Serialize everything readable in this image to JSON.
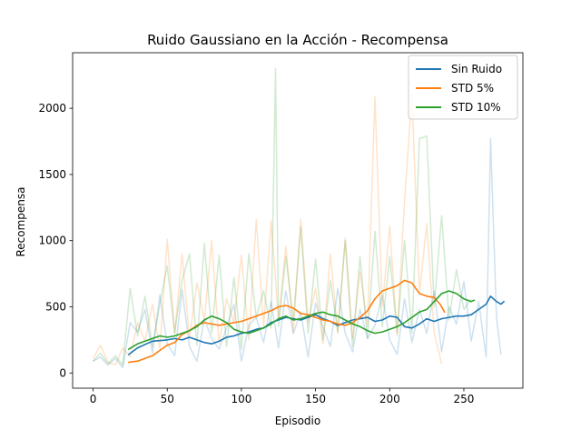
{
  "chart_data": {
    "type": "line",
    "title": "Ruido Gaussiano en la Acción - Recompensa",
    "xlabel": "Episodio",
    "ylabel": "Recompensa",
    "xlim": [
      -13.8,
      289.8
    ],
    "ylim": [
      -115,
      2420
    ],
    "xticks": [
      0,
      50,
      100,
      150,
      200,
      250
    ],
    "yticks": [
      0,
      500,
      1000,
      1500,
      2000
    ],
    "legend_position": "top-right",
    "series": [
      {
        "name": "Sin Ruido",
        "color": "#1f77b4",
        "smoothed_points": [
          [
            24,
            140
          ],
          [
            30,
            190
          ],
          [
            40,
            240
          ],
          [
            50,
            250
          ],
          [
            55,
            260
          ],
          [
            60,
            250
          ],
          [
            65,
            270
          ],
          [
            70,
            250
          ],
          [
            75,
            230
          ],
          [
            80,
            220
          ],
          [
            85,
            240
          ],
          [
            90,
            270
          ],
          [
            95,
            280
          ],
          [
            100,
            300
          ],
          [
            105,
            310
          ],
          [
            110,
            330
          ],
          [
            115,
            340
          ],
          [
            120,
            380
          ],
          [
            125,
            400
          ],
          [
            130,
            420
          ],
          [
            135,
            410
          ],
          [
            140,
            400
          ],
          [
            145,
            420
          ],
          [
            150,
            440
          ],
          [
            155,
            410
          ],
          [
            160,
            390
          ],
          [
            165,
            360
          ],
          [
            170,
            380
          ],
          [
            175,
            400
          ],
          [
            180,
            410
          ],
          [
            185,
            420
          ],
          [
            190,
            390
          ],
          [
            195,
            400
          ],
          [
            200,
            430
          ],
          [
            205,
            420
          ],
          [
            210,
            350
          ],
          [
            215,
            340
          ],
          [
            220,
            370
          ],
          [
            225,
            410
          ],
          [
            230,
            390
          ],
          [
            235,
            410
          ],
          [
            240,
            420
          ],
          [
            245,
            430
          ],
          [
            250,
            430
          ],
          [
            255,
            440
          ],
          [
            260,
            480
          ],
          [
            265,
            520
          ],
          [
            268,
            580
          ],
          [
            272,
            540
          ],
          [
            275,
            520
          ],
          [
            277,
            540
          ]
        ],
        "raw_peaks": [
          [
            0,
            90
          ],
          [
            5,
            120
          ],
          [
            10,
            60
          ],
          [
            15,
            110
          ],
          [
            20,
            40
          ],
          [
            25,
            380
          ],
          [
            30,
            310
          ],
          [
            35,
            480
          ],
          [
            40,
            150
          ],
          [
            45,
            590
          ],
          [
            50,
            220
          ],
          [
            55,
            130
          ],
          [
            60,
            630
          ],
          [
            65,
            200
          ],
          [
            70,
            90
          ],
          [
            75,
            410
          ],
          [
            80,
            260
          ],
          [
            85,
            180
          ],
          [
            90,
            340
          ],
          [
            95,
            520
          ],
          [
            100,
            90
          ],
          [
            105,
            360
          ],
          [
            110,
            420
          ],
          [
            115,
            230
          ],
          [
            120,
            540
          ],
          [
            125,
            190
          ],
          [
            130,
            620
          ],
          [
            135,
            300
          ],
          [
            140,
            460
          ],
          [
            145,
            120
          ],
          [
            150,
            530
          ],
          [
            155,
            350
          ],
          [
            160,
            200
          ],
          [
            165,
            640
          ],
          [
            170,
            300
          ],
          [
            175,
            160
          ],
          [
            180,
            480
          ],
          [
            185,
            260
          ],
          [
            190,
            360
          ],
          [
            195,
            590
          ],
          [
            200,
            250
          ],
          [
            205,
            140
          ],
          [
            210,
            560
          ],
          [
            215,
            230
          ],
          [
            220,
            480
          ],
          [
            225,
            300
          ],
          [
            230,
            620
          ],
          [
            235,
            160
          ],
          [
            240,
            500
          ],
          [
            245,
            370
          ],
          [
            250,
            690
          ],
          [
            255,
            240
          ],
          [
            260,
            540
          ],
          [
            265,
            120
          ],
          [
            268,
            1770
          ],
          [
            272,
            420
          ],
          [
            275,
            140
          ]
        ]
      },
      {
        "name": "STD 5%",
        "color": "#ff7f0e",
        "smoothed_points": [
          [
            24,
            80
          ],
          [
            30,
            90
          ],
          [
            40,
            130
          ],
          [
            45,
            170
          ],
          [
            50,
            210
          ],
          [
            55,
            230
          ],
          [
            60,
            290
          ],
          [
            65,
            320
          ],
          [
            70,
            360
          ],
          [
            75,
            380
          ],
          [
            80,
            370
          ],
          [
            85,
            360
          ],
          [
            90,
            370
          ],
          [
            95,
            380
          ],
          [
            100,
            390
          ],
          [
            105,
            410
          ],
          [
            110,
            430
          ],
          [
            115,
            450
          ],
          [
            120,
            470
          ],
          [
            125,
            500
          ],
          [
            130,
            510
          ],
          [
            135,
            490
          ],
          [
            140,
            450
          ],
          [
            145,
            440
          ],
          [
            150,
            420
          ],
          [
            155,
            400
          ],
          [
            160,
            390
          ],
          [
            165,
            370
          ],
          [
            170,
            360
          ],
          [
            175,
            380
          ],
          [
            180,
            420
          ],
          [
            185,
            470
          ],
          [
            190,
            560
          ],
          [
            195,
            620
          ],
          [
            200,
            640
          ],
          [
            205,
            660
          ],
          [
            210,
            700
          ],
          [
            215,
            680
          ],
          [
            220,
            600
          ],
          [
            225,
            580
          ],
          [
            230,
            570
          ],
          [
            234,
            520
          ],
          [
            237,
            460
          ]
        ],
        "raw_peaks": [
          [
            0,
            110
          ],
          [
            5,
            210
          ],
          [
            10,
            80
          ],
          [
            15,
            60
          ],
          [
            20,
            190
          ],
          [
            25,
            120
          ],
          [
            30,
            380
          ],
          [
            35,
            240
          ],
          [
            40,
            520
          ],
          [
            45,
            180
          ],
          [
            50,
            1010
          ],
          [
            55,
            300
          ],
          [
            60,
            900
          ],
          [
            65,
            260
          ],
          [
            70,
            680
          ],
          [
            75,
            400
          ],
          [
            80,
            1000
          ],
          [
            85,
            220
          ],
          [
            90,
            560
          ],
          [
            95,
            380
          ],
          [
            100,
            890
          ],
          [
            105,
            250
          ],
          [
            110,
            1160
          ],
          [
            115,
            350
          ],
          [
            120,
            1150
          ],
          [
            125,
            400
          ],
          [
            130,
            960
          ],
          [
            135,
            300
          ],
          [
            140,
            1160
          ],
          [
            145,
            380
          ],
          [
            150,
            640
          ],
          [
            155,
            220
          ],
          [
            160,
            900
          ],
          [
            165,
            300
          ],
          [
            170,
            1020
          ],
          [
            175,
            260
          ],
          [
            180,
            770
          ],
          [
            185,
            350
          ],
          [
            190,
            2090
          ],
          [
            195,
            500
          ],
          [
            200,
            1110
          ],
          [
            205,
            280
          ],
          [
            210,
            1300
          ],
          [
            215,
            2100
          ],
          [
            220,
            600
          ],
          [
            225,
            1130
          ],
          [
            230,
            300
          ],
          [
            235,
            70
          ]
        ]
      },
      {
        "name": "STD 10%",
        "color": "#2ca02c",
        "smoothed_points": [
          [
            24,
            180
          ],
          [
            30,
            220
          ],
          [
            35,
            240
          ],
          [
            40,
            260
          ],
          [
            45,
            280
          ],
          [
            50,
            270
          ],
          [
            55,
            280
          ],
          [
            60,
            300
          ],
          [
            65,
            320
          ],
          [
            70,
            350
          ],
          [
            75,
            400
          ],
          [
            80,
            430
          ],
          [
            85,
            410
          ],
          [
            90,
            380
          ],
          [
            95,
            330
          ],
          [
            100,
            310
          ],
          [
            105,
            300
          ],
          [
            110,
            320
          ],
          [
            115,
            340
          ],
          [
            120,
            370
          ],
          [
            125,
            410
          ],
          [
            130,
            430
          ],
          [
            135,
            400
          ],
          [
            140,
            410
          ],
          [
            145,
            430
          ],
          [
            150,
            450
          ],
          [
            155,
            460
          ],
          [
            160,
            440
          ],
          [
            165,
            430
          ],
          [
            170,
            400
          ],
          [
            175,
            370
          ],
          [
            180,
            350
          ],
          [
            185,
            320
          ],
          [
            190,
            300
          ],
          [
            195,
            310
          ],
          [
            200,
            330
          ],
          [
            205,
            350
          ],
          [
            210,
            380
          ],
          [
            215,
            420
          ],
          [
            220,
            460
          ],
          [
            225,
            480
          ],
          [
            230,
            540
          ],
          [
            235,
            600
          ],
          [
            240,
            620
          ],
          [
            245,
            600
          ],
          [
            250,
            560
          ],
          [
            255,
            540
          ],
          [
            257,
            550
          ]
        ],
        "raw_peaks": [
          [
            0,
            90
          ],
          [
            5,
            150
          ],
          [
            10,
            70
          ],
          [
            15,
            130
          ],
          [
            20,
            60
          ],
          [
            25,
            640
          ],
          [
            30,
            280
          ],
          [
            35,
            580
          ],
          [
            40,
            200
          ],
          [
            45,
            520
          ],
          [
            50,
            810
          ],
          [
            55,
            300
          ],
          [
            60,
            700
          ],
          [
            65,
            900
          ],
          [
            70,
            210
          ],
          [
            75,
            980
          ],
          [
            80,
            300
          ],
          [
            85,
            890
          ],
          [
            90,
            200
          ],
          [
            95,
            720
          ],
          [
            100,
            180
          ],
          [
            105,
            900
          ],
          [
            110,
            420
          ],
          [
            115,
            620
          ],
          [
            120,
            340
          ],
          [
            123,
            2300
          ],
          [
            125,
            350
          ],
          [
            130,
            880
          ],
          [
            135,
            400
          ],
          [
            140,
            1100
          ],
          [
            145,
            300
          ],
          [
            150,
            860
          ],
          [
            155,
            250
          ],
          [
            160,
            700
          ],
          [
            165,
            310
          ],
          [
            170,
            1000
          ],
          [
            175,
            200
          ],
          [
            180,
            880
          ],
          [
            185,
            260
          ],
          [
            190,
            1070
          ],
          [
            195,
            350
          ],
          [
            200,
            880
          ],
          [
            205,
            300
          ],
          [
            210,
            1000
          ],
          [
            215,
            300
          ],
          [
            220,
            1770
          ],
          [
            225,
            1790
          ],
          [
            230,
            500
          ],
          [
            235,
            1190
          ],
          [
            240,
            400
          ],
          [
            245,
            780
          ],
          [
            250,
            480
          ],
          [
            255,
            560
          ]
        ]
      }
    ]
  }
}
